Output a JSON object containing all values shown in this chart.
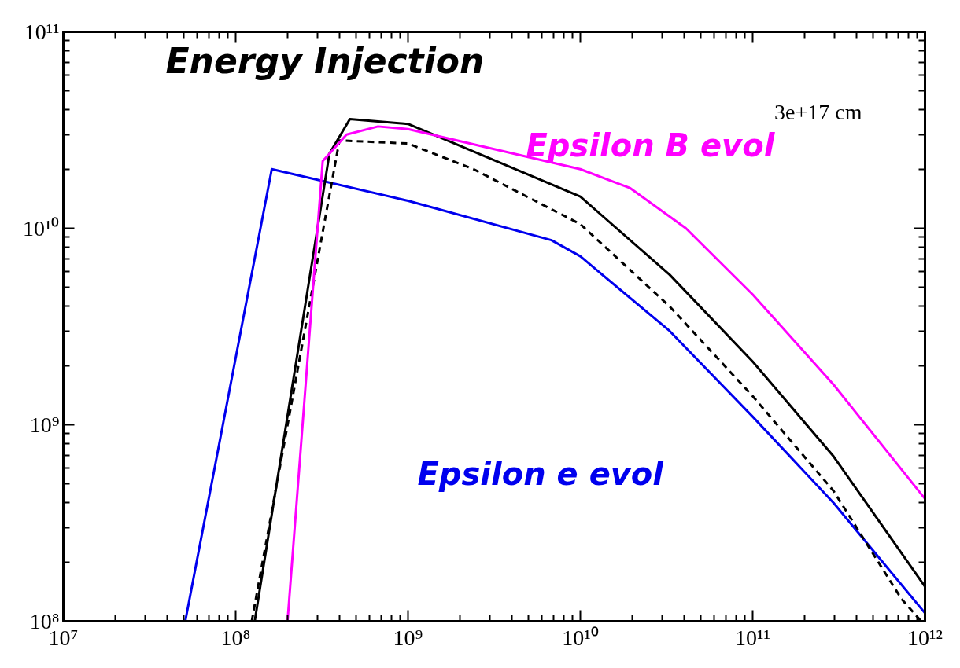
{
  "chart_data": {
    "type": "line",
    "title": "Energy Injection",
    "annotations": [
      "3e+17 cm"
    ],
    "log": "xy",
    "grid": false,
    "xlim": [
      10000000.0,
      1000000000000.0
    ],
    "ylim": [
      100000000.0,
      100000000000.0
    ],
    "xticks": [
      {
        "value": 10000000.0,
        "label": "10⁷"
      },
      {
        "value": 100000000.0,
        "label": "10⁸"
      },
      {
        "value": 1000000000.0,
        "label": "10⁹"
      },
      {
        "value": 10000000000.0,
        "label": "10¹⁰"
      },
      {
        "value": 100000000000.0,
        "label": "10¹¹"
      },
      {
        "value": 1000000000000.0,
        "label": "10¹²"
      }
    ],
    "yticks": [
      {
        "value": 100000000.0,
        "label": "10⁸"
      },
      {
        "value": 1000000000.0,
        "label": "10⁹"
      },
      {
        "value": 10000000000.0,
        "label": "10¹⁰"
      },
      {
        "value": 100000000000.0,
        "label": "10¹¹"
      }
    ],
    "series": [
      {
        "color": "#0000ee",
        "x": [
          51000000.0,
          162000000.0,
          1000000000.0,
          6800000000.0,
          10000000000.0,
          33000000000.0,
          100000000000.0,
          295000000000.0,
          1000000000000.0
        ],
        "values": [
          100000000.0,
          20000000000.0,
          13800000000.0,
          8700000000.0,
          7200000000.0,
          3000000000.0,
          1100000000.0,
          400000000.0,
          110000000.0
        ],
        "name": "Epsilon e evol"
      },
      {
        "color": "#000000",
        "x": [
          129000000.0,
          350000000.0,
          460000000.0,
          1000000000.0,
          10000000000.0,
          33000000000.0,
          100000000000.0,
          295000000000.0,
          1000000000000.0
        ],
        "values": [
          100000000.0,
          24000000000.0,
          36000000000.0,
          34000000000.0,
          14500000000.0,
          5800000000.0,
          2100000000.0,
          690000000.0,
          150000000.0
        ]
      },
      {
        "color": "#000000",
        "line_style": "dashed",
        "x": [
          124000000.0,
          400000000.0,
          1000000000.0,
          2400000000.0,
          10000000000.0,
          33000000000.0,
          100000000000.0,
          295000000000.0,
          730000000000.0,
          950000000000.0
        ],
        "values": [
          100000000.0,
          28000000000.0,
          27000000000.0,
          20000000000.0,
          10500000000.0,
          4000000000.0,
          1400000000.0,
          460000000.0,
          130000000.0,
          100000000.0
        ]
      },
      {
        "color": "#ff00ff",
        "x": [
          200000000.0,
          320000000.0,
          440000000.0,
          670000000.0,
          1000000000.0,
          10000000000.0,
          19500000000.0,
          41000000000.0,
          100000000000.0,
          295000000000.0,
          1000000000000.0
        ],
        "values": [
          100000000.0,
          22000000000.0,
          30000000000.0,
          33000000000.0,
          32000000000.0,
          20000000000.0,
          16000000000.0,
          10000000000.0,
          4600000000.0,
          1600000000.0,
          420000000.0
        ],
        "name": "Epsilon B evol"
      }
    ]
  }
}
